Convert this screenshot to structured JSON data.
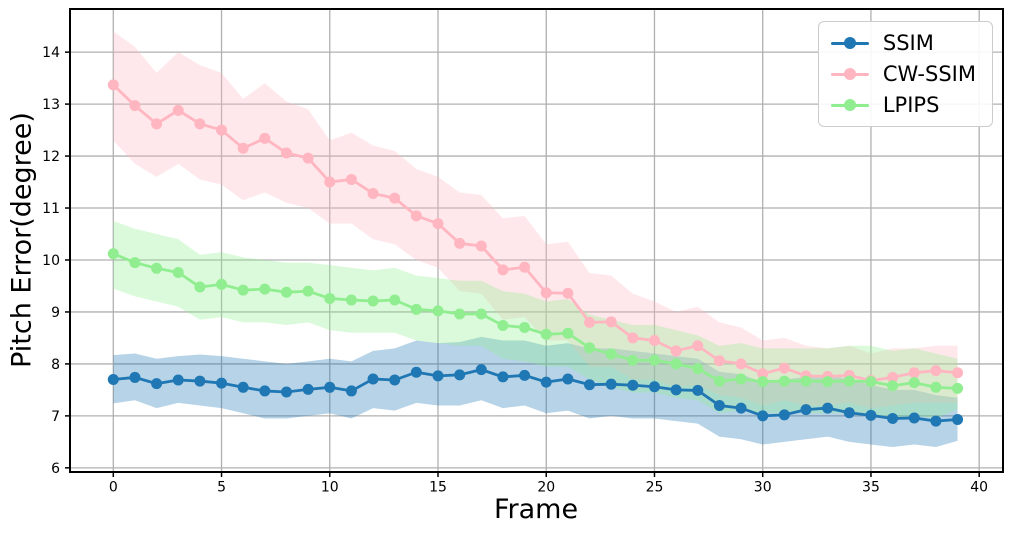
{
  "figure": {
    "background": "#ffffff"
  },
  "chart_data": {
    "type": "line",
    "title": "",
    "xlabel": "Frame",
    "ylabel": "Pitch Error(degree)",
    "x": [
      0,
      1,
      2,
      3,
      4,
      5,
      6,
      7,
      8,
      9,
      10,
      11,
      12,
      13,
      14,
      15,
      16,
      17,
      18,
      19,
      20,
      21,
      22,
      23,
      24,
      25,
      26,
      27,
      28,
      29,
      30,
      31,
      32,
      33,
      34,
      35,
      36,
      37,
      38,
      39
    ],
    "xlim": [
      -2.0,
      41.1
    ],
    "ylim": [
      5.92,
      14.83
    ],
    "xticks": [
      0,
      5,
      10,
      15,
      20,
      25,
      30,
      35,
      40
    ],
    "yticks": [
      6,
      7,
      8,
      9,
      10,
      11,
      12,
      13,
      14
    ],
    "grid": true,
    "grid_color": "#b0b0b0",
    "spine_color": "#000000",
    "band_alpha": 0.32,
    "legend": {
      "position": "upper right"
    },
    "series": [
      {
        "name": "SSIM",
        "color": "#1f77b4",
        "values": [
          7.7,
          7.74,
          7.62,
          7.69,
          7.67,
          7.63,
          7.55,
          7.48,
          7.46,
          7.51,
          7.55,
          7.48,
          7.71,
          7.69,
          7.84,
          7.77,
          7.79,
          7.89,
          7.75,
          7.78,
          7.65,
          7.71,
          7.6,
          7.61,
          7.59,
          7.56,
          7.5,
          7.49,
          7.2,
          7.15,
          7.0,
          7.02,
          7.12,
          7.15,
          7.06,
          7.01,
          6.95,
          6.96,
          6.9,
          6.93
        ],
        "upper": [
          8.17,
          8.2,
          8.1,
          8.15,
          8.18,
          8.15,
          8.1,
          8.05,
          8.0,
          8.05,
          8.1,
          8.05,
          8.25,
          8.3,
          8.45,
          8.4,
          8.42,
          8.52,
          8.45,
          8.45,
          8.35,
          8.4,
          8.3,
          8.3,
          8.25,
          8.2,
          8.15,
          8.1,
          7.85,
          7.8,
          7.65,
          7.7,
          7.75,
          7.8,
          7.7,
          7.6,
          7.5,
          7.5,
          7.4,
          7.35
        ],
        "lower": [
          7.24,
          7.3,
          7.15,
          7.25,
          7.2,
          7.15,
          7.05,
          6.95,
          6.95,
          7.0,
          7.05,
          6.95,
          7.15,
          7.1,
          7.25,
          7.2,
          7.2,
          7.3,
          7.15,
          7.2,
          7.05,
          7.1,
          6.95,
          7.0,
          6.95,
          6.95,
          6.9,
          6.85,
          6.6,
          6.55,
          6.45,
          6.5,
          6.55,
          6.6,
          6.5,
          6.45,
          6.4,
          6.45,
          6.4,
          6.52
        ]
      },
      {
        "name": "CW-SSIM",
        "color": "#ffb6c1",
        "values": [
          13.37,
          12.97,
          12.62,
          12.88,
          12.62,
          12.5,
          12.15,
          12.34,
          12.06,
          11.96,
          11.5,
          11.55,
          11.28,
          11.19,
          10.85,
          10.7,
          10.32,
          10.27,
          9.81,
          9.86,
          9.37,
          9.36,
          8.8,
          8.81,
          8.5,
          8.45,
          8.25,
          8.35,
          8.06,
          8.0,
          7.81,
          7.92,
          7.77,
          7.76,
          7.78,
          7.68,
          7.74,
          7.83,
          7.87,
          7.83
        ],
        "upper": [
          14.4,
          14.1,
          13.6,
          14.0,
          13.75,
          13.6,
          13.1,
          13.4,
          13.05,
          12.9,
          12.3,
          12.45,
          12.2,
          12.1,
          11.75,
          11.6,
          11.3,
          11.25,
          10.8,
          10.85,
          10.3,
          10.35,
          9.75,
          9.7,
          9.35,
          9.2,
          9.0,
          9.1,
          8.8,
          8.7,
          8.45,
          8.5,
          8.35,
          8.3,
          8.35,
          8.2,
          8.3,
          8.3,
          8.35,
          8.35
        ],
        "lower": [
          12.3,
          11.85,
          11.6,
          11.85,
          11.55,
          11.45,
          11.15,
          11.3,
          11.1,
          11.0,
          10.7,
          10.7,
          10.4,
          10.3,
          10.0,
          9.85,
          9.4,
          9.35,
          8.85,
          8.9,
          8.45,
          8.45,
          7.95,
          7.95,
          7.7,
          7.7,
          7.55,
          7.6,
          7.4,
          7.35,
          7.2,
          7.3,
          7.2,
          7.2,
          7.25,
          7.15,
          7.2,
          7.25,
          7.25,
          7.25
        ]
      },
      {
        "name": "LPIPS",
        "color": "#90ee90",
        "values": [
          10.12,
          9.95,
          9.84,
          9.76,
          9.48,
          9.53,
          9.42,
          9.44,
          9.38,
          9.4,
          9.26,
          9.23,
          9.21,
          9.23,
          9.05,
          9.02,
          8.96,
          8.96,
          8.74,
          8.7,
          8.57,
          8.59,
          8.31,
          8.19,
          8.07,
          8.07,
          8.0,
          7.91,
          7.67,
          7.71,
          7.66,
          7.67,
          7.67,
          7.66,
          7.67,
          7.66,
          7.58,
          7.64,
          7.55,
          7.53
        ],
        "upper": [
          10.75,
          10.6,
          10.5,
          10.4,
          10.1,
          10.15,
          10.05,
          10.0,
          9.95,
          9.95,
          9.9,
          9.85,
          9.8,
          9.85,
          9.7,
          9.65,
          9.6,
          9.6,
          9.4,
          9.35,
          9.2,
          9.25,
          8.95,
          8.85,
          8.75,
          8.75,
          8.65,
          8.55,
          8.35,
          8.4,
          8.3,
          8.3,
          8.3,
          8.3,
          8.35,
          8.35,
          8.25,
          8.3,
          8.2,
          8.1
        ],
        "lower": [
          9.45,
          9.3,
          9.2,
          9.1,
          8.85,
          8.9,
          8.8,
          8.8,
          8.75,
          8.8,
          8.65,
          8.6,
          8.6,
          8.6,
          8.45,
          8.4,
          8.35,
          8.35,
          8.1,
          8.05,
          7.95,
          7.95,
          7.7,
          7.55,
          7.45,
          7.45,
          7.35,
          7.3,
          7.05,
          7.1,
          7.05,
          7.05,
          7.05,
          7.05,
          7.05,
          7.05,
          6.95,
          7.0,
          6.95,
          7.13
        ]
      }
    ]
  }
}
